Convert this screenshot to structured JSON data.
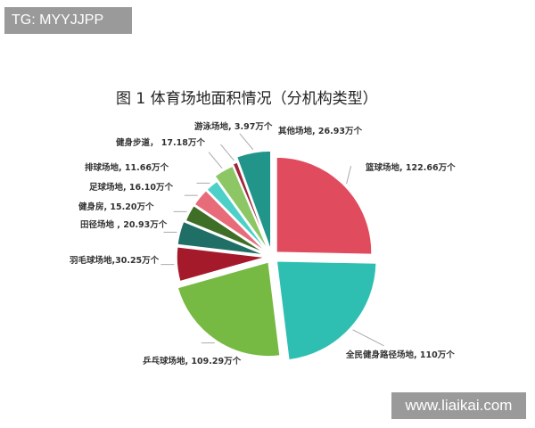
{
  "watermarks": {
    "top_left": "TG: MYYJJPP",
    "bottom_right": "www.liaikai.com"
  },
  "chart_data": {
    "type": "pie",
    "title": "图 1  体育场地面积情况（分机构类型）",
    "unit": "万个",
    "slices": [
      {
        "name": "篮球场地",
        "value": 122.66,
        "label": "篮球场地, 122.66万个",
        "color": "#e04b5e"
      },
      {
        "name": "全民健身路径场地",
        "value": 110,
        "label": "全民健身路径场地, 110万个",
        "color": "#2fbfb2"
      },
      {
        "name": "乒乓球场地",
        "value": 109.29,
        "label": "乒乓球场地, 109.29万个",
        "color": "#76b943"
      },
      {
        "name": "羽毛球场地",
        "value": 30.25,
        "label": "羽毛球场地,30.25万个",
        "color": "#a51a2a"
      },
      {
        "name": "田径场地",
        "value": 20.93,
        "label": "田径场地 , 20.93万个",
        "color": "#1f6f66"
      },
      {
        "name": "健身房",
        "value": 15.2,
        "label": "健身房, 15.20万个",
        "color": "#3f6e26"
      },
      {
        "name": "足球场地",
        "value": 16.1,
        "label": "足球场地, 16.10万个",
        "color": "#e86b7a"
      },
      {
        "name": "排球场地",
        "value": 11.66,
        "label": "排球场地, 11.66万个",
        "color": "#4dd0c8"
      },
      {
        "name": "健身步道",
        "value": 17.18,
        "label": "健身步道， 17.18万个",
        "color": "#8cc665"
      },
      {
        "name": "游泳场地",
        "value": 3.97,
        "label": "游泳场地, 3.97万个",
        "color": "#a0243a"
      },
      {
        "name": "其他场地",
        "value": 26.93,
        "label": "其他场地, 26.93万个",
        "color": "#22958a"
      }
    ]
  }
}
